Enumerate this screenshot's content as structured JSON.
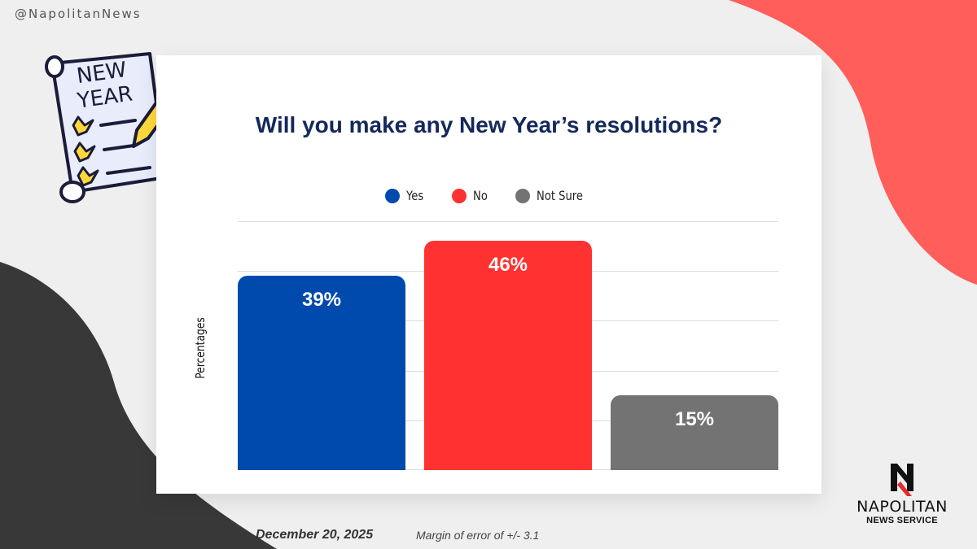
{
  "handle": "@NapolitanNews",
  "chart_data": {
    "type": "bar",
    "title": "Will you make any New Year’s resolutions?",
    "categories": [
      "Yes",
      "No",
      "Not Sure"
    ],
    "values": [
      39,
      46,
      15
    ],
    "value_labels": [
      "39%",
      "46%",
      "15%"
    ],
    "colors": [
      "#004aad",
      "#ff3131",
      "#737373"
    ],
    "ylabel": "Percentages",
    "ylim": [
      0,
      50
    ],
    "grid": true,
    "legend_position": "top-center"
  },
  "footer": {
    "date": "December 20, 2025",
    "margin": "Margin of error of +/- 3.1"
  },
  "logo": {
    "name": "NAPOLITAN",
    "sub": "NEWS SERVICE"
  },
  "illustration": {
    "line1": "NEW",
    "line2": "YEAR"
  },
  "theme": {
    "coral": "#ff5e5b",
    "dark": "#383838"
  }
}
